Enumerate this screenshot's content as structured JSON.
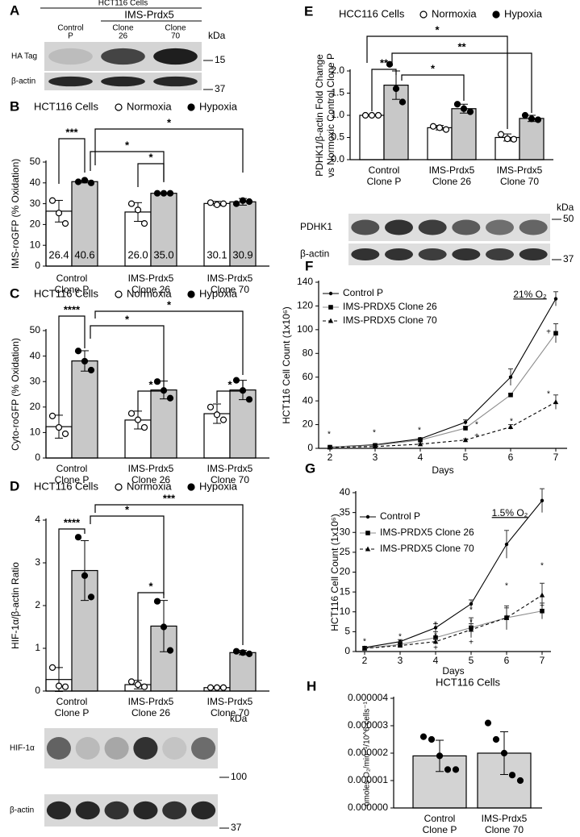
{
  "chart_data": [
    {
      "type": "bar",
      "panel": "B",
      "legend_title": "HCT116 Cells",
      "ylabel": "IMS-roGFP (% Oxidation)",
      "categories": [
        [
          "Control",
          "Clone P"
        ],
        [
          "IMS-Prdx5",
          "Clone 26"
        ],
        [
          "IMS-Prdx5",
          "Clone 70"
        ]
      ],
      "series": [
        {
          "name": "Normoxia",
          "color": "#ffffff",
          "values": [
            26.4,
            26.0,
            30.1
          ],
          "value_labels": [
            "26.4",
            "26.0",
            "30.1"
          ],
          "errors": [
            5.2,
            4.5,
            1.0
          ],
          "points": [
            [
              31.5,
              25.5,
              20.5
            ],
            [
              30,
              27,
              20.5
            ],
            [
              30.5,
              29.5,
              30
            ]
          ]
        },
        {
          "name": "Hypoxia",
          "color": "#c8c8c8",
          "values": [
            40.6,
            35.0,
            30.9
          ],
          "value_labels": [
            "40.6",
            "35.0",
            "30.9"
          ],
          "errors": [
            0.6,
            0.2,
            1.6
          ],
          "points": [
            [
              40.5,
              41.3,
              40
            ],
            [
              35,
              35,
              35
            ],
            [
              30,
              31.5,
              31
            ]
          ]
        }
      ],
      "ylim": [
        0,
        50
      ],
      "yticks": [
        0,
        10,
        20,
        30,
        40,
        50
      ],
      "annotations": [
        "***",
        "*",
        "*",
        "*"
      ]
    },
    {
      "type": "bar",
      "panel": "C",
      "legend_title": "HCT116 Cells",
      "ylabel": "Cyto-roGFP (% Oxidation)",
      "categories": [
        [
          "Control",
          "Clone P"
        ],
        [
          "IMS-Prdx5",
          "Clone 26"
        ],
        [
          "IMS-Prdx5",
          "Clone 70"
        ]
      ],
      "series": [
        {
          "name": "Normoxia",
          "color": "#ffffff",
          "values": [
            12.3,
            14.9,
            17.4
          ],
          "errors": [
            4.5,
            3.5,
            3.8
          ],
          "points": [
            [
              16.5,
              12,
              9.5
            ],
            [
              17.5,
              15,
              12
            ],
            [
              20,
              17,
              15
            ]
          ]
        },
        {
          "name": "Hypoxia",
          "color": "#c8c8c8",
          "values": [
            38.1,
            26.7,
            26.7
          ],
          "errors": [
            4,
            3.5,
            3.8
          ],
          "points": [
            [
              42,
              38,
              34.5
            ],
            [
              30,
              26.5,
              23.5
            ],
            [
              30.5,
              26.5,
              23
            ]
          ]
        }
      ],
      "ylim": [
        0,
        50
      ],
      "yticks": [
        0,
        10,
        20,
        30,
        40,
        50
      ],
      "annotations": [
        "****",
        "*",
        "*",
        "*",
        "*"
      ]
    },
    {
      "type": "bar",
      "panel": "D",
      "legend_title": "HCT116 Cells",
      "ylabel": "HIF-1α/β-actin Ratio",
      "categories": [
        [
          "Control",
          "Clone P"
        ],
        [
          "IMS-Prdx5",
          "Clone 26"
        ],
        [
          "IMS-Prdx5",
          "Clone 70"
        ]
      ],
      "series": [
        {
          "name": "Normoxia",
          "color": "#ffffff",
          "values": [
            0.27,
            0.15,
            0.08
          ],
          "errors": [
            0.28,
            0.1,
            0.02
          ],
          "points": [
            [
              0.55,
              0.12,
              0.1
            ],
            [
              0.22,
              0.15,
              0.1
            ],
            [
              0.08,
              0.08,
              0.08
            ]
          ]
        },
        {
          "name": "Hypoxia",
          "color": "#c8c8c8",
          "values": [
            2.82,
            1.52,
            0.9
          ],
          "errors": [
            0.7,
            0.6,
            0.05
          ],
          "points": [
            [
              3.6,
              2.7,
              2.2
            ],
            [
              2.1,
              1.5,
              0.95
            ],
            [
              0.93,
              0.9,
              0.87
            ]
          ]
        }
      ],
      "ylim": [
        0,
        4
      ],
      "yticks": [
        0,
        1,
        2,
        3,
        4
      ],
      "annotations": [
        "****",
        "*",
        "*",
        "***"
      ]
    },
    {
      "type": "bar",
      "panel": "E",
      "legend_title": "HCC116 Cells",
      "ylabel": [
        "PDHK1/β-actin Fold Change",
        "vs Normoxic Control Clone P"
      ],
      "categories": [
        [
          "Control",
          "Clone P"
        ],
        [
          "IMS-Prdx5",
          "Clone 26"
        ],
        [
          "IMS-Prdx5",
          "Clone 70"
        ]
      ],
      "series": [
        {
          "name": "Normoxia",
          "color": "#ffffff",
          "values": [
            1.0,
            0.72,
            0.5
          ],
          "errors": [
            0,
            0.05,
            0.08
          ],
          "points": [
            [
              1,
              1,
              1
            ],
            [
              0.75,
              0.72,
              0.68
            ],
            [
              0.57,
              0.47,
              0.46
            ]
          ]
        },
        {
          "name": "Hypoxia",
          "color": "#c8c8c8",
          "values": [
            1.68,
            1.15,
            0.93
          ],
          "errors": [
            0.32,
            0.1,
            0.07
          ],
          "points": [
            [
              2.15,
              1.6,
              1.3
            ],
            [
              1.25,
              1.15,
              1.08
            ],
            [
              1.0,
              0.92,
              0.9
            ]
          ]
        }
      ],
      "ylim": [
        0,
        2
      ],
      "yticks": [
        {
          "value": 0,
          "label": "0.0"
        },
        0.5,
        {
          "value": 1,
          "label": "1.0"
        },
        1.5,
        {
          "value": 2,
          "label": "2.0"
        }
      ],
      "annotations": [
        "**",
        "*",
        "**",
        "*"
      ]
    },
    {
      "type": "line",
      "panel": "F",
      "condition": "21% O₂",
      "xlabel": "Days",
      "ylabel": "HCT116 Cell Count (1x10⁶)",
      "x": [
        2,
        3,
        4,
        5,
        6,
        7
      ],
      "xlim": [
        1.75,
        7.25
      ],
      "xticks": [
        2,
        3,
        4,
        5,
        6,
        7
      ],
      "ylim": [
        0,
        140
      ],
      "yticks": [
        0,
        20,
        40,
        60,
        80,
        100,
        120,
        140
      ],
      "series": [
        {
          "name": "Control P",
          "color": "#000000",
          "marker": "circle",
          "line_style": "solid",
          "values": [
            1,
            3,
            8,
            22,
            60,
            126
          ],
          "errors": [
            0.5,
            0.5,
            1,
            2,
            7,
            6
          ]
        },
        {
          "name": "IMS-PRDX5 Clone 26",
          "color": "#8c8c8c",
          "marker": "square",
          "line_style": "solid",
          "values": [
            1,
            2.5,
            7,
            17,
            45,
            97
          ],
          "errors": [
            0.3,
            0.4,
            1,
            1.5,
            1,
            8
          ]
        },
        {
          "name": "IMS-PRDX5 Clone 70",
          "color": "#000000",
          "marker": "triangle",
          "line_style": "dashed",
          "values": [
            0.8,
            1.5,
            3.5,
            7,
            18,
            39
          ],
          "errors": [
            0.2,
            0.3,
            0.5,
            1,
            2,
            6
          ]
        }
      ],
      "annotations": [
        "*",
        "*",
        "*",
        "*",
        "+",
        "*",
        "+",
        "*"
      ]
    },
    {
      "type": "line",
      "panel": "G",
      "condition": "1.5% O₂",
      "xlabel": "Days",
      "ylabel": "HCT116 Cell Count (1x10⁶)",
      "x": [
        2,
        3,
        4,
        5,
        6,
        7
      ],
      "xlim": [
        1.75,
        7.25
      ],
      "xticks": [
        2,
        3,
        4,
        5,
        6,
        7
      ],
      "ylim": [
        0,
        40
      ],
      "yticks": [
        0,
        5,
        10,
        15,
        20,
        25,
        30,
        35,
        40
      ],
      "series": [
        {
          "name": "Control P",
          "color": "#000000",
          "marker": "circle",
          "line_style": "solid",
          "values": [
            1,
            2.5,
            6,
            12,
            27,
            38
          ],
          "errors": [
            0.3,
            0.5,
            1,
            1,
            3.5,
            3
          ]
        },
        {
          "name": "IMS-PRDX5 Clone 26",
          "color": "#8c8c8c",
          "marker": "square",
          "line_style": "solid",
          "values": [
            0.8,
            1.8,
            3.5,
            6,
            8.5,
            10.2
          ],
          "errors": [
            0.2,
            0.6,
            1.5,
            2.5,
            3,
            2
          ]
        },
        {
          "name": "IMS-PRDX5 Clone 70",
          "color": "#000000",
          "marker": "triangle",
          "line_style": "dashed",
          "values": [
            0.8,
            1.5,
            2.5,
            5.5,
            8.5,
            14.2
          ],
          "errors": [
            0.2,
            0.3,
            0.7,
            1.5,
            2.5,
            3
          ]
        }
      ],
      "annotations": [
        "*",
        "*",
        "*",
        "*",
        "+",
        "*",
        "*",
        "+",
        "*",
        "+",
        "*",
        "+"
      ]
    },
    {
      "type": "bar",
      "panel": "H",
      "title": "HCT116 Cells",
      "ylabel": "nmoles O₂/min⁻¹/10^6 cells⁻¹",
      "categories": [
        [
          "Control",
          "Clone P"
        ],
        [
          "IMS-Prdx5",
          "Clone 70"
        ]
      ],
      "series": [
        {
          "color": "#d3d3d3",
          "values": [
            1.9e-06,
            2e-06
          ],
          "errors": [
            5.7e-07,
            7.8e-07
          ],
          "points": [
            [
              2.6e-06,
              2.5e-06,
              1.9e-06,
              1.4e-06,
              1.4e-06
            ],
            [
              3.1e-06,
              2.5e-06,
              2e-06,
              1.2e-06,
              1e-06
            ]
          ]
        }
      ],
      "ylim": [
        0,
        4e-06
      ],
      "yticks": [
        {
          "value": 0,
          "label": "0.000000"
        },
        1e-06,
        2e-06,
        3e-06,
        4e-06
      ]
    }
  ],
  "blots": [
    {
      "panel": "A",
      "header": "HCT116 Cells",
      "group": "IMS-Prdx5",
      "lanes": [
        [
          "Control",
          "P"
        ],
        [
          "Clone",
          "26"
        ],
        [
          "Clone",
          "70"
        ]
      ],
      "rows": [
        "HA Tag",
        "β-actin"
      ],
      "unit": "kDa",
      "markers": [
        15,
        37
      ]
    },
    {
      "rows": [
        "HIF-1α",
        "β-actin"
      ],
      "unit": "kDa",
      "markers": [
        100,
        37
      ]
    },
    {
      "rows": [
        "PDHK1",
        "β-actin"
      ],
      "unit": "kDa",
      "markers": [
        50,
        37
      ]
    }
  ]
}
